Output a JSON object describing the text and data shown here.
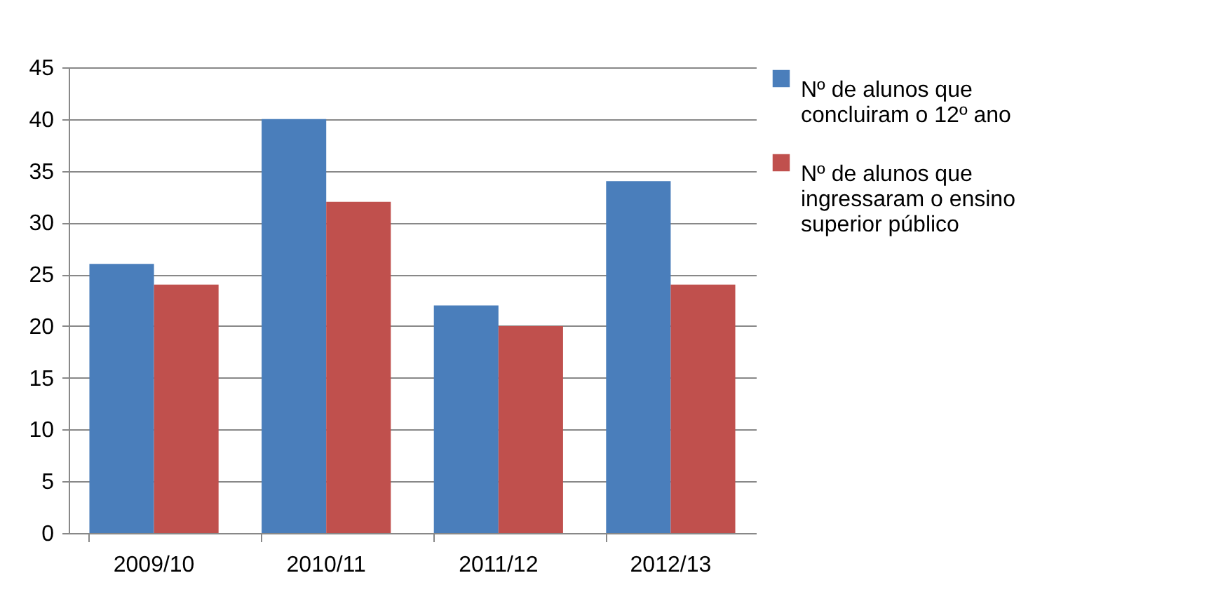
{
  "chart_data": {
    "type": "bar",
    "categories": [
      "2009/10",
      "2010/11",
      "2011/12",
      "2012/13"
    ],
    "series": [
      {
        "name": "Nº de alunos que concluiram o 12º ano",
        "color": "#4a7ebb",
        "values": [
          26,
          40,
          22,
          34
        ]
      },
      {
        "name": "Nº de alunos que ingressaram o ensino superior público",
        "color": "#c0504d",
        "values": [
          24,
          32,
          20,
          24
        ]
      }
    ],
    "ylim": [
      0,
      45
    ],
    "yticks": [
      0,
      5,
      10,
      15,
      20,
      25,
      30,
      35,
      40,
      45
    ],
    "grid": "y",
    "legend": "right"
  }
}
